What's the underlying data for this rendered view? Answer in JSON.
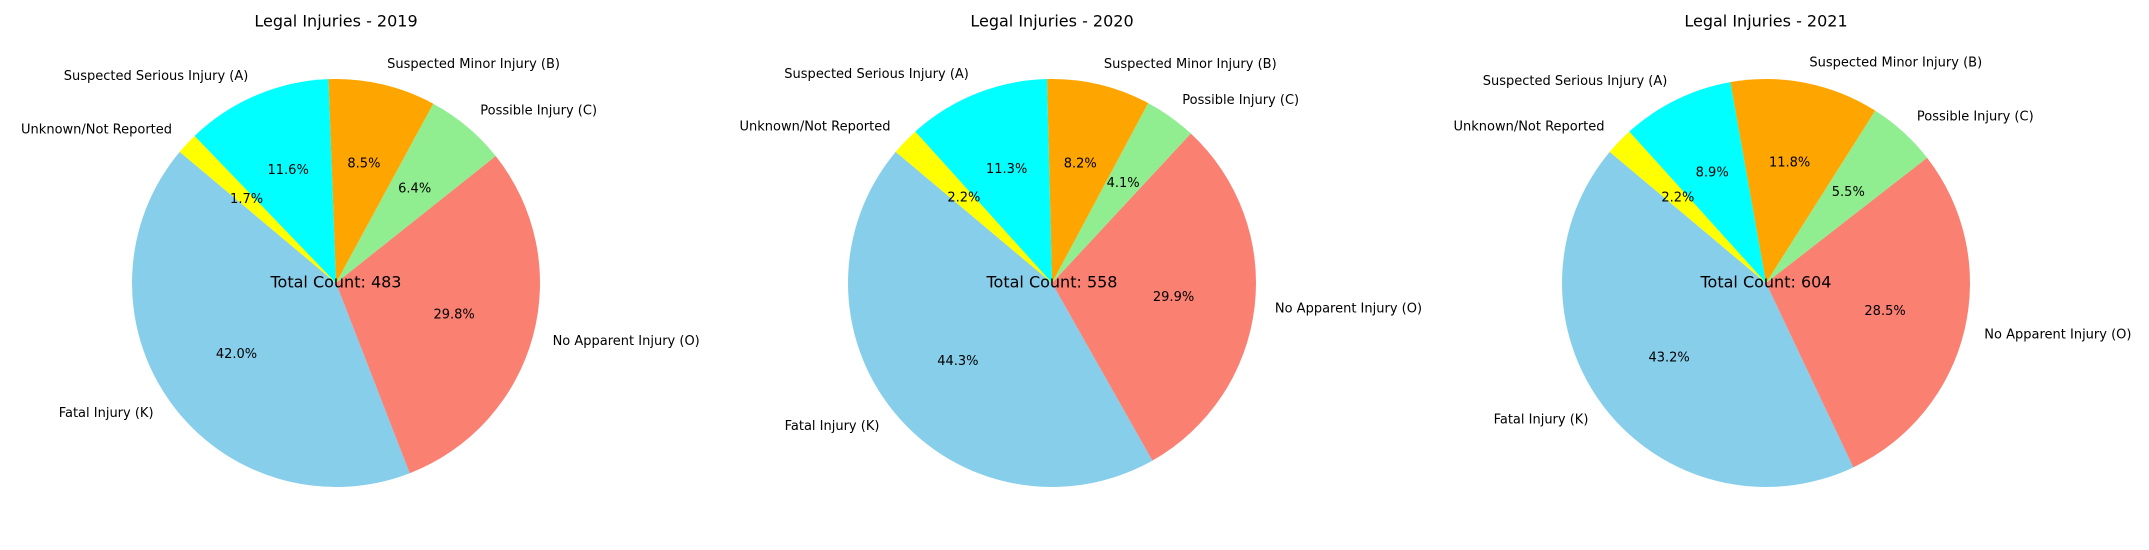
{
  "chart_data": [
    {
      "type": "pie",
      "title": "Legal Injuries - 2019",
      "center_label": "Total Count: 483",
      "slices": [
        {
          "label": "Fatal Injury (K)",
          "pct": 42.0,
          "pct_label": "42.0%",
          "color": "#87CEEB"
        },
        {
          "label": "No Apparent Injury (O)",
          "pct": 29.8,
          "pct_label": "29.8%",
          "color": "#FA8072"
        },
        {
          "label": "Possible Injury (C)",
          "pct": 6.4,
          "pct_label": "6.4%",
          "color": "#90EE90"
        },
        {
          "label": "Suspected Minor Injury (B)",
          "pct": 8.5,
          "pct_label": "8.5%",
          "color": "#FFA500"
        },
        {
          "label": "Suspected Serious Injury (A)",
          "pct": 11.6,
          "pct_label": "11.6%",
          "color": "#00FFFF"
        },
        {
          "label": "Unknown/Not Reported",
          "pct": 1.7,
          "pct_label": "1.7%",
          "color": "#FFFF00"
        }
      ]
    },
    {
      "type": "pie",
      "title": "Legal Injuries - 2020",
      "center_label": "Total Count: 558",
      "slices": [
        {
          "label": "Fatal Injury (K)",
          "pct": 44.3,
          "pct_label": "44.3%",
          "color": "#87CEEB"
        },
        {
          "label": "No Apparent Injury (O)",
          "pct": 29.9,
          "pct_label": "29.9%",
          "color": "#FA8072"
        },
        {
          "label": "Possible Injury (C)",
          "pct": 4.1,
          "pct_label": "4.1%",
          "color": "#90EE90"
        },
        {
          "label": "Suspected Minor Injury (B)",
          "pct": 8.2,
          "pct_label": "8.2%",
          "color": "#FFA500"
        },
        {
          "label": "Suspected Serious Injury (A)",
          "pct": 11.3,
          "pct_label": "11.3%",
          "color": "#00FFFF"
        },
        {
          "label": "Unknown/Not Reported",
          "pct": 2.2,
          "pct_label": "2.2%",
          "color": "#FFFF00"
        }
      ]
    },
    {
      "type": "pie",
      "title": "Legal Injuries - 2021",
      "center_label": "Total Count: 604",
      "slices": [
        {
          "label": "Fatal Injury (K)",
          "pct": 43.2,
          "pct_label": "43.2%",
          "color": "#87CEEB"
        },
        {
          "label": "No Apparent Injury (O)",
          "pct": 28.5,
          "pct_label": "28.5%",
          "color": "#FA8072"
        },
        {
          "label": "Possible Injury (C)",
          "pct": 5.5,
          "pct_label": "5.5%",
          "color": "#90EE90"
        },
        {
          "label": "Suspected Minor Injury (B)",
          "pct": 11.8,
          "pct_label": "11.8%",
          "color": "#FFA500"
        },
        {
          "label": "Suspected Serious Injury (A)",
          "pct": 8.9,
          "pct_label": "8.9%",
          "color": "#00FFFF"
        },
        {
          "label": "Unknown/Not Reported",
          "pct": 2.2,
          "pct_label": "2.2%",
          "color": "#FFFF00"
        }
      ]
    }
  ]
}
